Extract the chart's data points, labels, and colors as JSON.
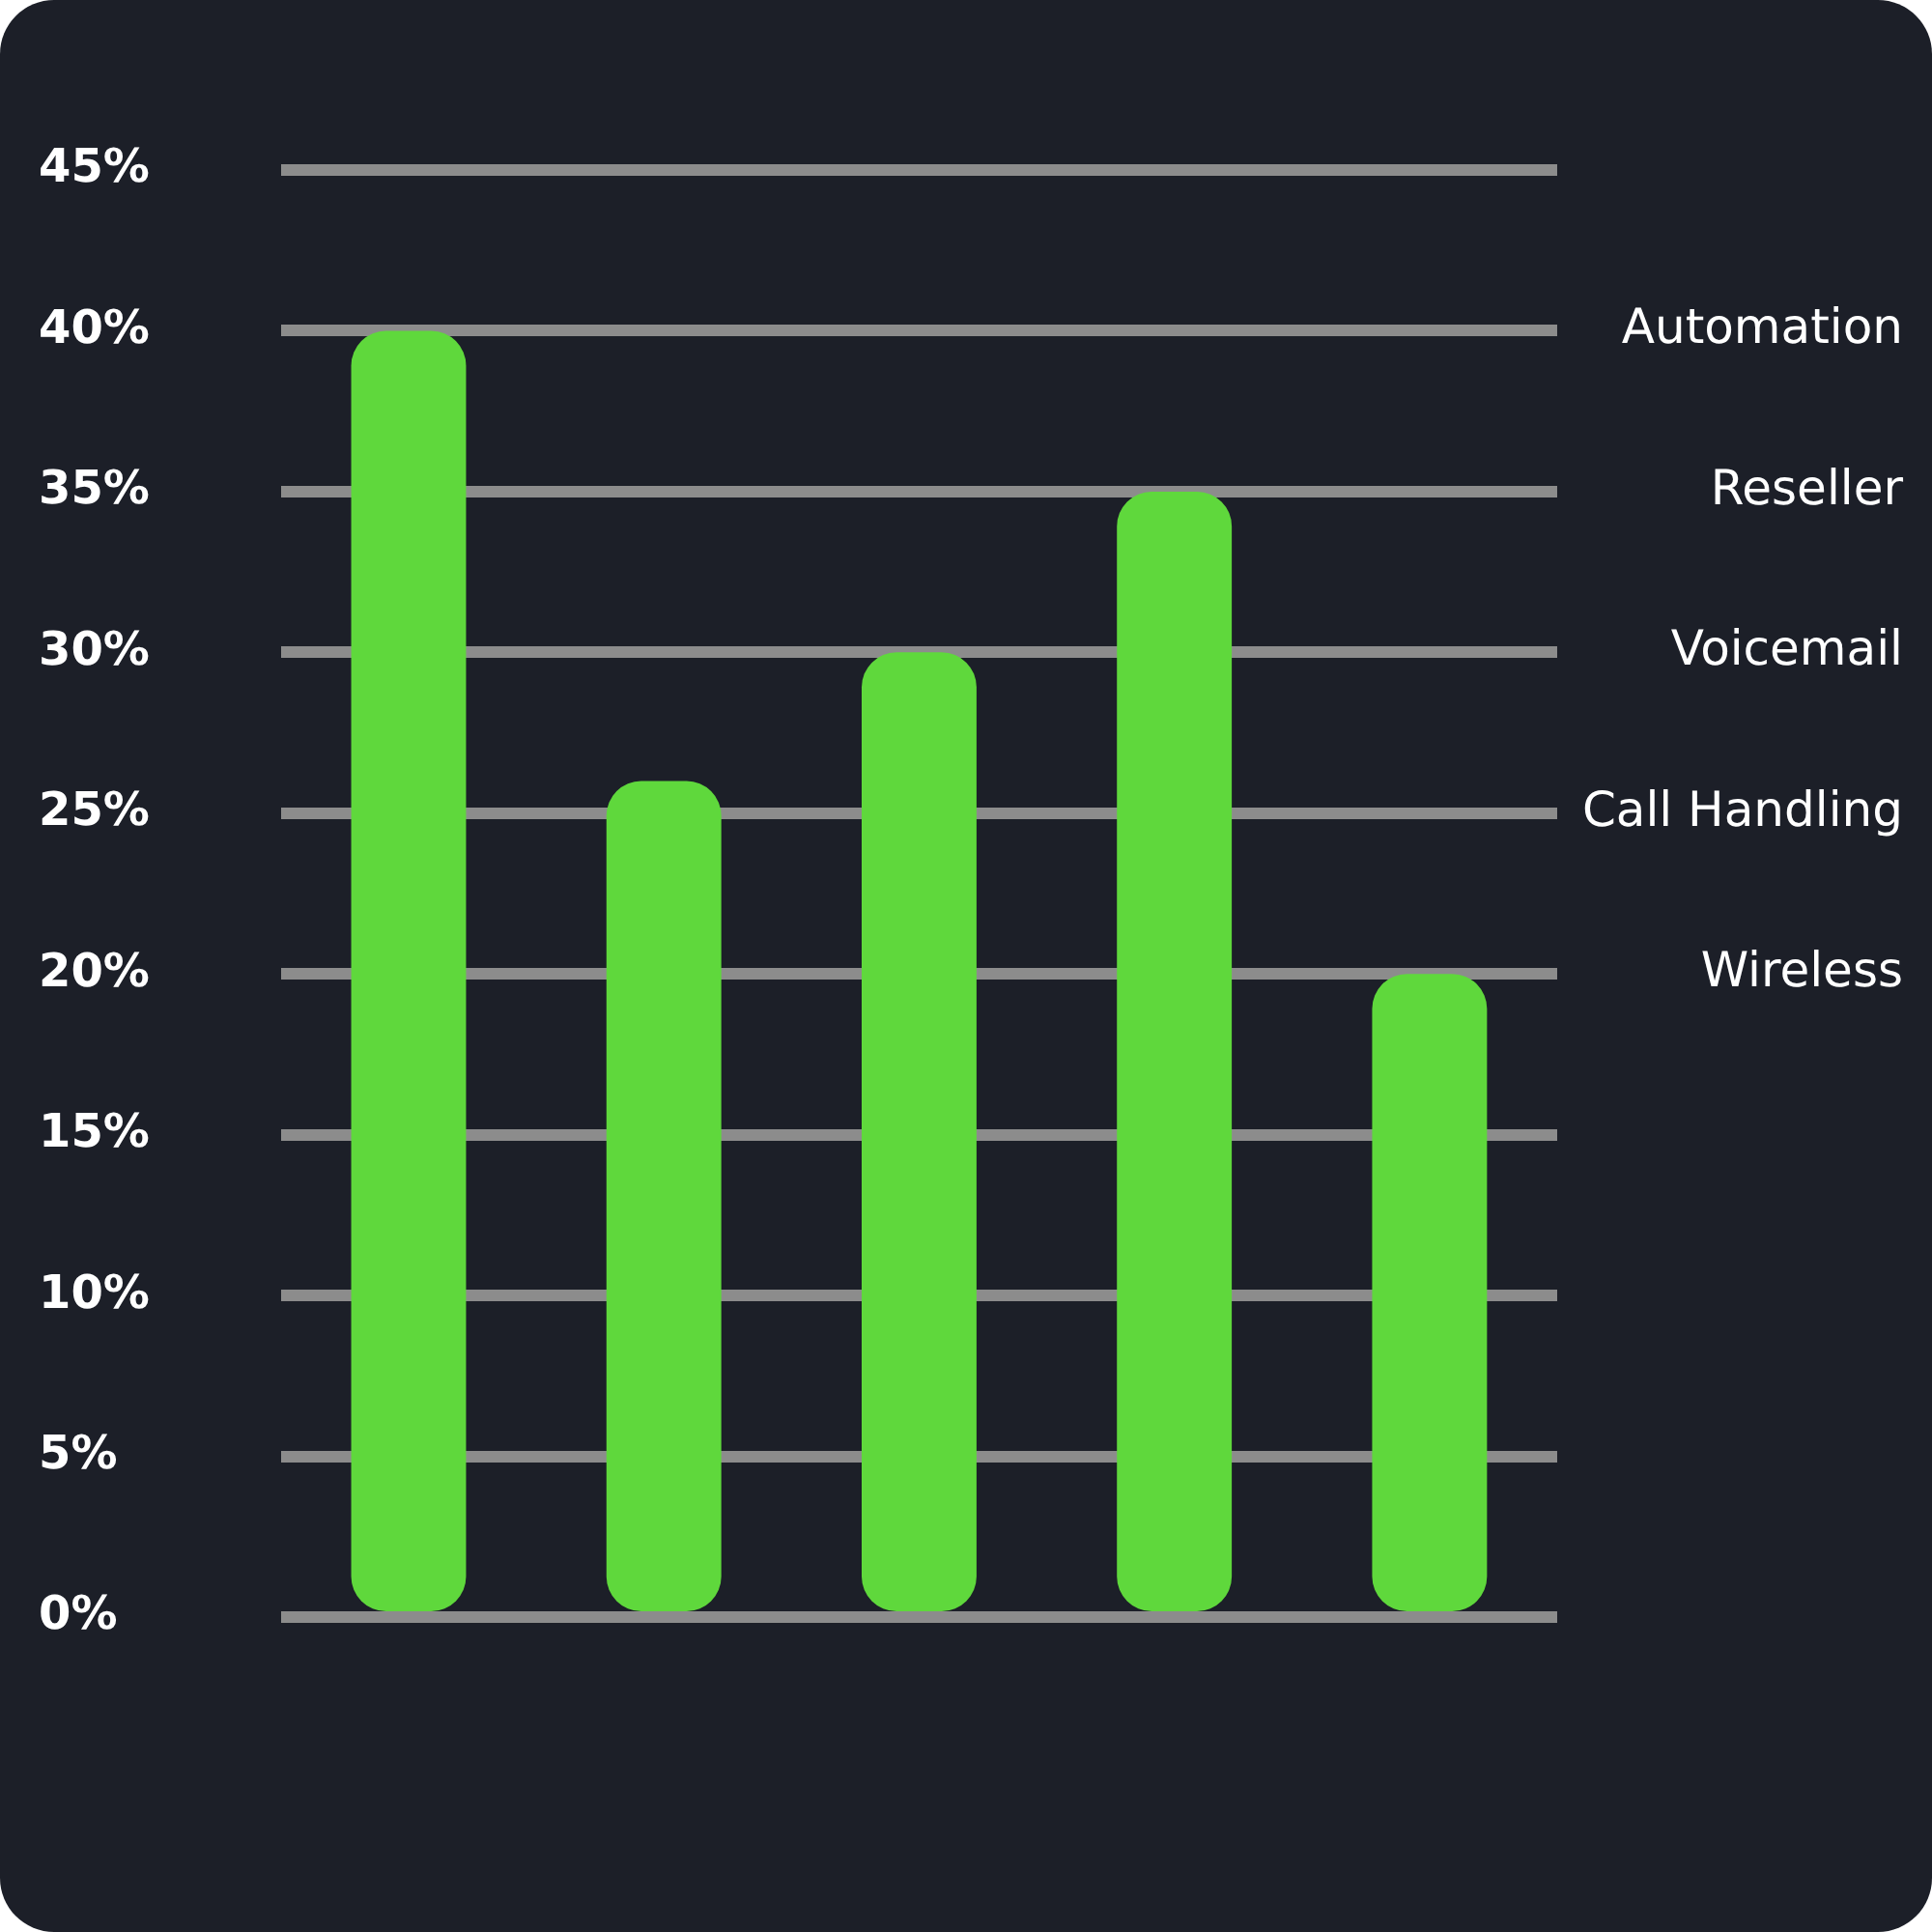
{
  "chart_data": {
    "type": "bar",
    "categories": [
      null,
      null,
      null,
      null,
      null
    ],
    "values": [
      40,
      26,
      30,
      35,
      20
    ],
    "color": "#5fd83c",
    "ylim": [
      0,
      45
    ],
    "yticks": [
      {
        "value": 0,
        "label": "0%"
      },
      {
        "value": 5,
        "label": "5%"
      },
      {
        "value": 10,
        "label": "10%"
      },
      {
        "value": 15,
        "label": "15%"
      },
      {
        "value": 20,
        "label": "20%"
      },
      {
        "value": 25,
        "label": "25%"
      },
      {
        "value": 30,
        "label": "30%"
      },
      {
        "value": 35,
        "label": "35%"
      },
      {
        "value": 40,
        "label": "40%"
      },
      {
        "value": 45,
        "label": "45%"
      }
    ],
    "grid": "y",
    "legend": false,
    "annotations": [
      "Automation",
      "Reseller",
      "Voicemail",
      "Call Handling",
      "Wireless"
    ]
  }
}
